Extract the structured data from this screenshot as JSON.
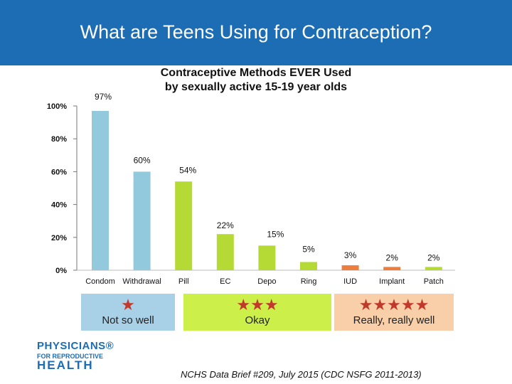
{
  "header": {
    "title": "What are Teens Using for Contraception?"
  },
  "chart_data": {
    "type": "bar",
    "title_lines": [
      "Contraceptive Methods EVER Used",
      "by sexually active 15-19 year olds"
    ],
    "categories": [
      "Condom",
      "Withdrawal",
      "Pill",
      "EC",
      "Depo",
      "Ring",
      "IUD",
      "Implant",
      "Patch"
    ],
    "values": [
      97,
      60,
      54,
      22,
      15,
      5,
      3,
      2,
      2
    ],
    "value_labels": [
      "97%",
      "60%",
      "54%",
      "22%",
      "15%",
      "5%",
      "3%",
      "2%",
      "2%"
    ],
    "tick_labels": [
      "0%",
      "20%",
      "40%",
      "60%",
      "80%",
      "100%"
    ],
    "ylim": [
      0,
      100
    ],
    "grid": false,
    "colors": [
      "#93c9dc",
      "#93c9dc",
      "#b5d935",
      "#b5d935",
      "#b5d935",
      "#b5d935",
      "#ec7d3c",
      "#ec7d3c",
      "#b5d935"
    ]
  },
  "effectiveness": [
    {
      "stars": "★",
      "label": "Not so well",
      "color": "#a8d0e6",
      "star_color": "#c0392b"
    },
    {
      "stars": "★★★",
      "label": "Okay",
      "color": "#ccef4a",
      "star_color": "#c0392b"
    },
    {
      "stars": "★★★★★",
      "label": "Really, really well",
      "color": "#f8cfa8",
      "star_color": "#c0392b"
    }
  ],
  "logo": {
    "line1": "PHYSICIANS®",
    "line2": "FOR REPRODUCTIVE",
    "line3": "HEALTH"
  },
  "source": "NCHS Data Brief #209, July 2015 (CDC NSFG 2011-2013)"
}
